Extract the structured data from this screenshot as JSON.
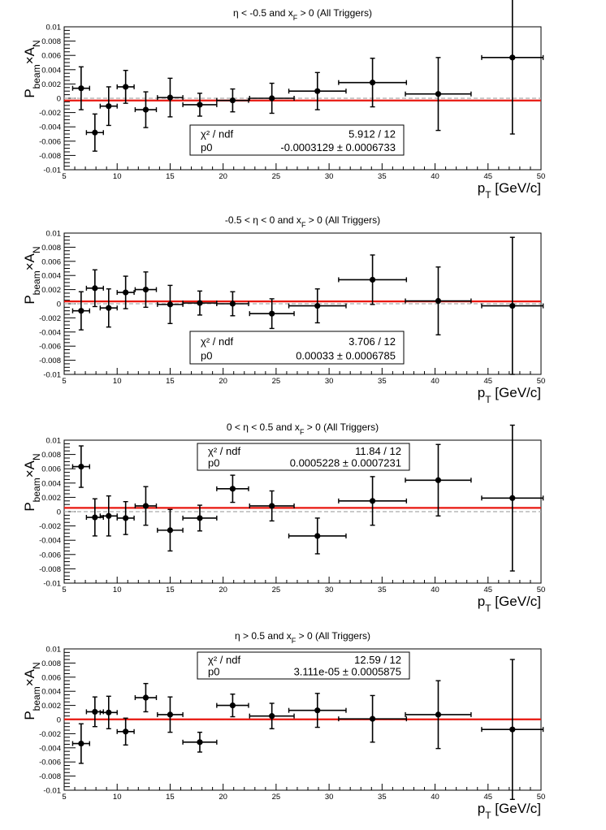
{
  "chart_data": [
    {
      "type": "scatter",
      "title": "η < -0.5 and x_F > 0 (All Triggers)",
      "title_parts": {
        "pre": "η < -0.5 and x",
        "sub": "F",
        "post": " > 0 (All Triggers)"
      },
      "ylabel_parts": {
        "pre": "P",
        "sub": "beam",
        "post": "×A",
        "sub2": "N"
      },
      "xlabel_parts": {
        "pre": "p",
        "sub": "T",
        "post": " [GeV/c]"
      },
      "xlim": [
        5,
        50
      ],
      "ylim": [
        -0.01,
        0.01
      ],
      "x_ticks": [
        5,
        10,
        15,
        20,
        25,
        30,
        35,
        40,
        45,
        50
      ],
      "y_ticks": [
        "0.01",
        "0.008",
        "0.006",
        "0.004",
        "0.002",
        "0",
        "-0.002",
        "-0.004",
        "-0.006",
        "-0.008",
        "-0.01"
      ],
      "y_tick_values": [
        0.01,
        0.008,
        0.006,
        0.004,
        0.002,
        0,
        -0.002,
        -0.004,
        -0.006,
        -0.008,
        -0.01
      ],
      "points": [
        {
          "x": 6.6,
          "xerr": 0.8,
          "y": 0.0014,
          "yerr": 0.003
        },
        {
          "x": 7.9,
          "xerr": 0.8,
          "y": -0.0048,
          "yerr": 0.0026
        },
        {
          "x": 9.2,
          "xerr": 0.8,
          "y": -0.0011,
          "yerr": 0.0027
        },
        {
          "x": 10.8,
          "xerr": 0.8,
          "y": 0.0016,
          "yerr": 0.0023
        },
        {
          "x": 12.7,
          "xerr": 1.0,
          "y": -0.0016,
          "yerr": 0.0025
        },
        {
          "x": 15.0,
          "xerr": 1.2,
          "y": 0.0001,
          "yerr": 0.0027
        },
        {
          "x": 17.8,
          "xerr": 1.6,
          "y": -0.0009,
          "yerr": 0.0016
        },
        {
          "x": 20.9,
          "xerr": 1.5,
          "y": -0.0003,
          "yerr": 0.0016
        },
        {
          "x": 24.6,
          "xerr": 2.1,
          "y": 0.0,
          "yerr": 0.0021
        },
        {
          "x": 28.9,
          "xerr": 2.7,
          "y": 0.001,
          "yerr": 0.0026
        },
        {
          "x": 34.1,
          "xerr": 3.2,
          "y": 0.0022,
          "yerr": 0.0034
        },
        {
          "x": 40.3,
          "xerr": 3.1,
          "y": 0.0006,
          "yerr": 0.0051
        },
        {
          "x": 47.3,
          "xerr": 2.9,
          "y": 0.0057,
          "yerr": 0.0107
        }
      ],
      "fit": {
        "p0": -0.0003129
      },
      "stats": {
        "row1_label": "χ² / ndf",
        "row1_value": "5.912 / 12",
        "row2_label": "p0",
        "row2_value": "-0.0003129 ± 0.0006733"
      },
      "stats_box": "mid-left"
    },
    {
      "type": "scatter",
      "title": "-0.5 < η < 0 and x_F > 0 (All Triggers)",
      "title_parts": {
        "pre": "-0.5 < η < 0 and x",
        "sub": "F",
        "post": " > 0 (All Triggers)"
      },
      "ylabel_parts": {
        "pre": "P",
        "sub": "beam",
        "post": "×A",
        "sub2": "N"
      },
      "xlabel_parts": {
        "pre": "p",
        "sub": "T",
        "post": " [GeV/c]"
      },
      "xlim": [
        5,
        50
      ],
      "ylim": [
        -0.01,
        0.01
      ],
      "x_ticks": [
        5,
        10,
        15,
        20,
        25,
        30,
        35,
        40,
        45,
        50
      ],
      "y_ticks": [
        "0.01",
        "0.008",
        "0.006",
        "0.004",
        "0.002",
        "0",
        "-0.002",
        "-0.004",
        "-0.006",
        "-0.008",
        "-0.01"
      ],
      "y_tick_values": [
        0.01,
        0.008,
        0.006,
        0.004,
        0.002,
        0,
        -0.002,
        -0.004,
        -0.006,
        -0.008,
        -0.01
      ],
      "points": [
        {
          "x": 6.6,
          "xerr": 0.8,
          "y": -0.001,
          "yerr": 0.0027
        },
        {
          "x": 7.9,
          "xerr": 0.8,
          "y": 0.0022,
          "yerr": 0.0026
        },
        {
          "x": 9.2,
          "xerr": 0.8,
          "y": -0.0006,
          "yerr": 0.0027
        },
        {
          "x": 10.8,
          "xerr": 0.8,
          "y": 0.0016,
          "yerr": 0.0023
        },
        {
          "x": 12.7,
          "xerr": 1.0,
          "y": 0.002,
          "yerr": 0.0025
        },
        {
          "x": 15.0,
          "xerr": 1.2,
          "y": -0.0001,
          "yerr": 0.0027
        },
        {
          "x": 17.8,
          "xerr": 1.6,
          "y": 0.0001,
          "yerr": 0.0017
        },
        {
          "x": 20.9,
          "xerr": 1.5,
          "y": 0.0,
          "yerr": 0.0017
        },
        {
          "x": 24.6,
          "xerr": 2.1,
          "y": -0.0014,
          "yerr": 0.0021
        },
        {
          "x": 28.9,
          "xerr": 2.7,
          "y": -0.0003,
          "yerr": 0.0024
        },
        {
          "x": 34.1,
          "xerr": 3.2,
          "y": 0.0034,
          "yerr": 0.0035
        },
        {
          "x": 40.3,
          "xerr": 3.1,
          "y": 0.0004,
          "yerr": 0.0048
        },
        {
          "x": 47.3,
          "xerr": 2.9,
          "y": -0.0003,
          "yerr": 0.0097
        }
      ],
      "fit": {
        "p0": 0.00033
      },
      "stats": {
        "row1_label": "χ² / ndf",
        "row1_value": "3.706 / 12",
        "row2_label": "p0",
        "row2_value": "0.00033 ± 0.0006785"
      },
      "stats_box": "bottom-middle"
    },
    {
      "type": "scatter",
      "title": "0 < η < 0.5 and x_F > 0 (All Triggers)",
      "title_parts": {
        "pre": "0 < η < 0.5 and x",
        "sub": "F",
        "post": " > 0 (All Triggers)"
      },
      "ylabel_parts": {
        "pre": "P",
        "sub": "beam",
        "post": "×A",
        "sub2": "N"
      },
      "xlabel_parts": {
        "pre": "p",
        "sub": "T",
        "post": " [GeV/c]"
      },
      "xlim": [
        5,
        50
      ],
      "ylim": [
        -0.01,
        0.01
      ],
      "x_ticks": [
        5,
        10,
        15,
        20,
        25,
        30,
        35,
        40,
        45,
        50
      ],
      "y_ticks": [
        "0.01",
        "0.008",
        "0.006",
        "0.004",
        "0.002",
        "0",
        "-0.002",
        "-0.004",
        "-0.006",
        "-0.008",
        "-0.01"
      ],
      "y_tick_values": [
        0.01,
        0.008,
        0.006,
        0.004,
        0.002,
        0,
        -0.002,
        -0.004,
        -0.006,
        -0.008,
        -0.01
      ],
      "points": [
        {
          "x": 6.6,
          "xerr": 0.8,
          "y": 0.0063,
          "yerr": 0.0029
        },
        {
          "x": 7.9,
          "xerr": 0.8,
          "y": -0.0008,
          "yerr": 0.0026
        },
        {
          "x": 9.2,
          "xerr": 0.8,
          "y": -0.0006,
          "yerr": 0.0028
        },
        {
          "x": 10.8,
          "xerr": 0.8,
          "y": -0.0009,
          "yerr": 0.0023
        },
        {
          "x": 12.7,
          "xerr": 1.0,
          "y": 0.0008,
          "yerr": 0.0027
        },
        {
          "x": 15.0,
          "xerr": 1.2,
          "y": -0.0026,
          "yerr": 0.0029
        },
        {
          "x": 17.8,
          "xerr": 1.6,
          "y": -0.0009,
          "yerr": 0.0018
        },
        {
          "x": 20.9,
          "xerr": 1.5,
          "y": 0.0032,
          "yerr": 0.0019
        },
        {
          "x": 24.6,
          "xerr": 2.1,
          "y": 0.0008,
          "yerr": 0.0021
        },
        {
          "x": 28.9,
          "xerr": 2.7,
          "y": -0.0034,
          "yerr": 0.0025
        },
        {
          "x": 34.1,
          "xerr": 3.2,
          "y": 0.0015,
          "yerr": 0.0034
        },
        {
          "x": 40.3,
          "xerr": 3.1,
          "y": 0.0044,
          "yerr": 0.005
        },
        {
          "x": 47.3,
          "xerr": 2.9,
          "y": 0.0019,
          "yerr": 0.0102
        }
      ],
      "fit": {
        "p0": 0.0005228
      },
      "stats": {
        "row1_label": "χ² / ndf",
        "row1_value": "11.84 / 12",
        "row2_label": "p0",
        "row2_value": "0.0005228 ± 0.0007231"
      },
      "stats_box": "top-middle"
    },
    {
      "type": "scatter",
      "title": "η > 0.5 and x_F > 0 (All Triggers)",
      "title_parts": {
        "pre": "η > 0.5 and x",
        "sub": "F",
        "post": " > 0 (All Triggers)"
      },
      "ylabel_parts": {
        "pre": "P",
        "sub": "beam",
        "post": "×A",
        "sub2": "N"
      },
      "xlabel_parts": {
        "pre": "p",
        "sub": "T",
        "post": " [GeV/c]"
      },
      "xlim": [
        5,
        50
      ],
      "ylim": [
        -0.01,
        0.01
      ],
      "x_ticks": [
        5,
        10,
        15,
        20,
        25,
        30,
        35,
        40,
        45,
        50
      ],
      "y_ticks": [
        "0.01",
        "0.008",
        "0.006",
        "0.004",
        "0.002",
        "0",
        "-0.002",
        "-0.004",
        "-0.006",
        "-0.008",
        "-0.01"
      ],
      "y_tick_values": [
        0.01,
        0.008,
        0.006,
        0.004,
        0.002,
        0,
        -0.002,
        -0.004,
        -0.006,
        -0.008,
        -0.01
      ],
      "points": [
        {
          "x": 6.6,
          "xerr": 0.8,
          "y": -0.0034,
          "yerr": 0.0028
        },
        {
          "x": 7.9,
          "xerr": 0.8,
          "y": 0.0011,
          "yerr": 0.0021
        },
        {
          "x": 9.2,
          "xerr": 0.8,
          "y": 0.001,
          "yerr": 0.0023
        },
        {
          "x": 10.8,
          "xerr": 0.8,
          "y": -0.0017,
          "yerr": 0.0019
        },
        {
          "x": 12.7,
          "xerr": 1.0,
          "y": 0.0031,
          "yerr": 0.002
        },
        {
          "x": 15.0,
          "xerr": 1.2,
          "y": 0.0007,
          "yerr": 0.0025
        },
        {
          "x": 17.8,
          "xerr": 1.6,
          "y": -0.0032,
          "yerr": 0.0014
        },
        {
          "x": 20.9,
          "xerr": 1.5,
          "y": 0.002,
          "yerr": 0.0016
        },
        {
          "x": 24.6,
          "xerr": 2.1,
          "y": 0.0005,
          "yerr": 0.0018
        },
        {
          "x": 28.9,
          "xerr": 2.7,
          "y": 0.0013,
          "yerr": 0.0024
        },
        {
          "x": 34.1,
          "xerr": 3.2,
          "y": 0.0001,
          "yerr": 0.0033
        },
        {
          "x": 40.3,
          "xerr": 3.1,
          "y": 0.0007,
          "yerr": 0.0048
        },
        {
          "x": 47.3,
          "xerr": 2.9,
          "y": -0.0014,
          "yerr": 0.0099
        }
      ],
      "fit": {
        "p0": 3.111e-05
      },
      "stats": {
        "row1_label": "χ² / ndf",
        "row1_value": "12.59 / 12",
        "row2_label": "p0",
        "row2_value": "3.111e-05 ± 0.0005875"
      },
      "stats_box": "top-middle"
    }
  ],
  "colors": {
    "fit_line": "#e8170f",
    "zero_line": "#aaaaaa",
    "markers": "#000000",
    "frame": "#000000",
    "background": "#ffffff"
  }
}
